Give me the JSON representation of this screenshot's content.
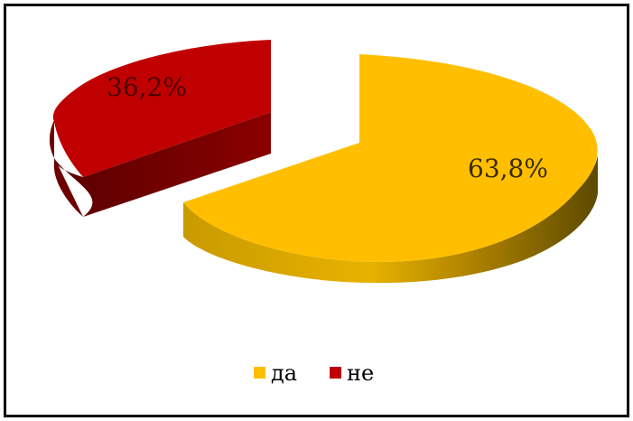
{
  "chart_data": {
    "type": "pie",
    "style": "3d-exploded",
    "title": "",
    "categories": [
      "да",
      "не"
    ],
    "values": [
      63.8,
      36.2
    ],
    "data_labels": [
      "63,8%",
      "36,2%"
    ],
    "colors": {
      "да": "#FFBF00",
      "не": "#C00000"
    },
    "legend": {
      "position": "bottom",
      "entries": [
        "да",
        "не"
      ]
    }
  }
}
